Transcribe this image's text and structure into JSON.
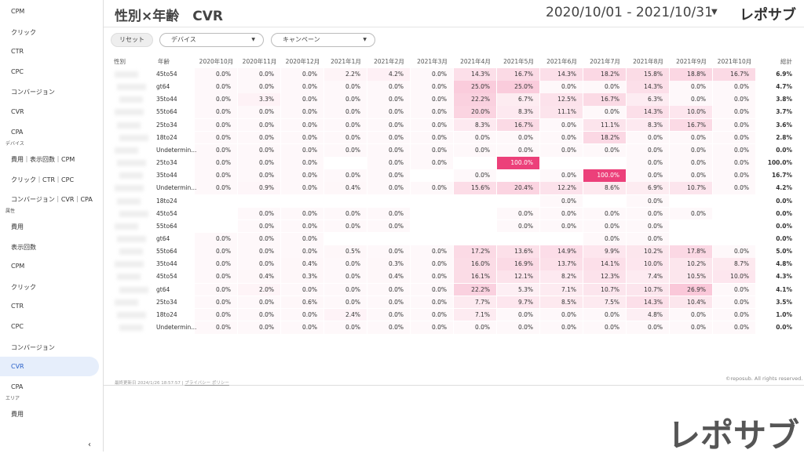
{
  "sidebar": [
    {
      "items": [
        "CPM",
        "クリック",
        "CTR",
        "CPC",
        "コンバージョン",
        "CVR",
        "CPA"
      ]
    },
    {
      "heading": "デバイス",
      "items": [
        "費用｜表示回数｜CPM",
        "クリック｜CTR｜CPC",
        "コンバージョン｜CVR｜CPA"
      ]
    },
    {
      "heading": "属性",
      "items": [
        "費用",
        "表示回数",
        "CPM",
        "クリック",
        "CTR",
        "CPC",
        "コンバージョン",
        "CVR",
        "CPA"
      ]
    },
    {
      "heading": "エリア",
      "items": [
        "費用"
      ]
    }
  ],
  "header": {
    "title": "性別×年齢　CVR",
    "date_range": "2020/10/01 - 2021/10/31",
    "brand": "レポサブ"
  },
  "filters": {
    "reset": "リセット",
    "dropdowns": [
      "デバイス",
      "キャンペーン"
    ]
  },
  "table": {
    "columns": [
      "性別",
      "年齢",
      "2020年10月",
      "2020年11月",
      "2020年12月",
      "2021年1月",
      "2021年2月",
      "2021年3月",
      "2021年4月",
      "2021年5月",
      "2021年6月",
      "2021年7月",
      "2021年8月",
      "2021年9月",
      "2021年10月",
      "総計"
    ],
    "rows": [
      [
        "45to54",
        "0.0%",
        "0.0%",
        "0.0%",
        "2.2%",
        "4.2%",
        "0.0%",
        "14.3%",
        "16.7%",
        "14.3%",
        "18.2%",
        "15.8%",
        "18.8%",
        "16.7%",
        "6.9%"
      ],
      [
        "gt64",
        "0.0%",
        "0.0%",
        "0.0%",
        "0.0%",
        "0.0%",
        "0.0%",
        "25.0%",
        "25.0%",
        "0.0%",
        "0.0%",
        "14.3%",
        "0.0%",
        "0.0%",
        "4.7%"
      ],
      [
        "35to44",
        "0.0%",
        "3.3%",
        "0.0%",
        "0.0%",
        "0.0%",
        "0.0%",
        "22.2%",
        "6.7%",
        "12.5%",
        "16.7%",
        "6.3%",
        "0.0%",
        "0.0%",
        "3.8%"
      ],
      [
        "55to64",
        "0.0%",
        "0.0%",
        "0.0%",
        "0.0%",
        "0.0%",
        "0.0%",
        "20.0%",
        "8.3%",
        "11.1%",
        "0.0%",
        "14.3%",
        "10.0%",
        "0.0%",
        "3.7%"
      ],
      [
        "25to34",
        "0.0%",
        "0.0%",
        "0.0%",
        "0.0%",
        "0.0%",
        "0.0%",
        "8.3%",
        "16.7%",
        "0.0%",
        "11.1%",
        "8.3%",
        "16.7%",
        "0.0%",
        "3.6%"
      ],
      [
        "18to24",
        "0.0%",
        "0.0%",
        "0.0%",
        "0.0%",
        "0.0%",
        "0.0%",
        "0.0%",
        "0.0%",
        "0.0%",
        "18.2%",
        "0.0%",
        "0.0%",
        "0.0%",
        "2.8%"
      ],
      [
        "Undetermin...",
        "0.0%",
        "0.0%",
        "0.0%",
        "0.0%",
        "0.0%",
        "0.0%",
        "0.0%",
        "0.0%",
        "0.0%",
        "0.0%",
        "0.0%",
        "0.0%",
        "0.0%",
        "0.0%"
      ],
      [
        "25to34",
        "0.0%",
        "0.0%",
        "0.0%",
        null,
        "0.0%",
        "0.0%",
        null,
        "100.0%",
        null,
        null,
        "0.0%",
        "0.0%",
        "0.0%",
        "100.0%"
      ],
      [
        "35to44",
        "0.0%",
        "0.0%",
        "0.0%",
        "0.0%",
        "0.0%",
        null,
        "0.0%",
        null,
        "0.0%",
        "100.0%",
        "0.0%",
        "0.0%",
        "0.0%",
        "16.7%"
      ],
      [
        "Undetermin...",
        "0.0%",
        "0.9%",
        "0.0%",
        "0.4%",
        "0.0%",
        "0.0%",
        "15.6%",
        "20.4%",
        "12.2%",
        "8.6%",
        "6.9%",
        "10.7%",
        "0.0%",
        "4.2%"
      ],
      [
        "18to24",
        null,
        null,
        null,
        null,
        null,
        null,
        null,
        null,
        "0.0%",
        null,
        "0.0%",
        null,
        null,
        "0.0%"
      ],
      [
        "45to54",
        null,
        "0.0%",
        "0.0%",
        "0.0%",
        "0.0%",
        null,
        null,
        "0.0%",
        "0.0%",
        "0.0%",
        "0.0%",
        "0.0%",
        null,
        "0.0%"
      ],
      [
        "55to64",
        null,
        "0.0%",
        "0.0%",
        "0.0%",
        "0.0%",
        null,
        null,
        "0.0%",
        "0.0%",
        "0.0%",
        "0.0%",
        null,
        null,
        "0.0%"
      ],
      [
        "gt64",
        "0.0%",
        "0.0%",
        "0.0%",
        null,
        null,
        null,
        null,
        null,
        null,
        "0.0%",
        "0.0%",
        null,
        null,
        "0.0%"
      ],
      [
        "55to64",
        "0.0%",
        "0.0%",
        "0.0%",
        "0.5%",
        "0.0%",
        "0.0%",
        "17.2%",
        "13.6%",
        "14.9%",
        "9.9%",
        "10.2%",
        "17.8%",
        "0.0%",
        "5.0%"
      ],
      [
        "35to44",
        "0.0%",
        "0.0%",
        "0.4%",
        "0.0%",
        "0.3%",
        "0.0%",
        "16.0%",
        "16.9%",
        "13.7%",
        "14.1%",
        "10.0%",
        "10.2%",
        "8.7%",
        "4.8%"
      ],
      [
        "45to54",
        "0.0%",
        "0.4%",
        "0.3%",
        "0.0%",
        "0.4%",
        "0.0%",
        "16.1%",
        "12.1%",
        "8.2%",
        "12.3%",
        "7.4%",
        "10.5%",
        "10.0%",
        "4.3%"
      ],
      [
        "gt64",
        "0.0%",
        "2.0%",
        "0.0%",
        "0.0%",
        "0.0%",
        "0.0%",
        "22.2%",
        "5.3%",
        "7.1%",
        "10.7%",
        "10.7%",
        "26.9%",
        "0.0%",
        "4.1%"
      ],
      [
        "25to34",
        "0.0%",
        "0.0%",
        "0.6%",
        "0.0%",
        "0.0%",
        "0.0%",
        "7.7%",
        "9.7%",
        "8.5%",
        "7.5%",
        "14.3%",
        "10.4%",
        "0.0%",
        "3.5%"
      ],
      [
        "18to24",
        "0.0%",
        "0.0%",
        "0.0%",
        "2.4%",
        "0.0%",
        "0.0%",
        "7.1%",
        "0.0%",
        "0.0%",
        "0.0%",
        "4.8%",
        "0.0%",
        "0.0%",
        "1.0%"
      ],
      [
        "Undetermin...",
        "0.0%",
        "0.0%",
        "0.0%",
        "0.0%",
        "0.0%",
        "0.0%",
        "0.0%",
        "0.0%",
        "0.0%",
        "0.0%",
        "0.0%",
        "0.0%",
        "0.0%",
        "0.0%"
      ]
    ]
  },
  "footer": {
    "updated": "最終更新日 2024/1/26 18:57:57",
    "privacy": "プライバシー ポリシー",
    "copyright": "©reposub. All rights reserved."
  },
  "watermark": "レポサブ"
}
